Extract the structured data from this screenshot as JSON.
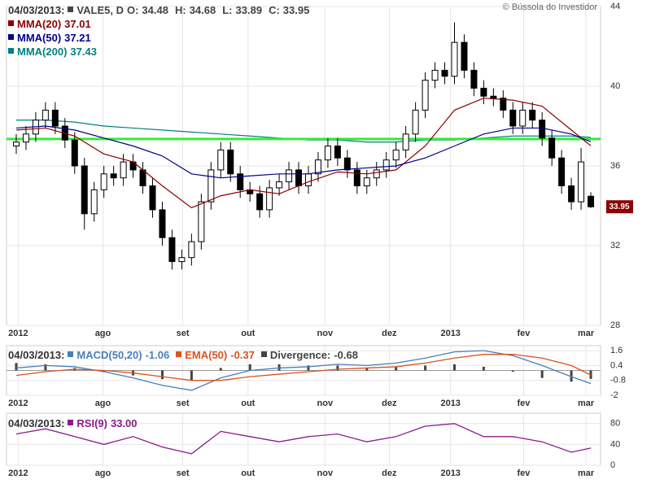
{
  "header": {
    "watermark": "© Bússola do Investidor"
  },
  "chart_data": [
    {
      "type": "candlestick",
      "date": "04/03/2013:",
      "name": "VALE5, D",
      "color": "#444444",
      "ohlc_labels": [
        "O:",
        "H:",
        "L:",
        "C:"
      ],
      "open": [
        37.0,
        37.2,
        37.6,
        38.3,
        38.8,
        38.0,
        37.3,
        36.0,
        33.6,
        34.8,
        35.6,
        35.4,
        36.2,
        35.8,
        35.0,
        33.8,
        32.4,
        31.2,
        31.4,
        32.2,
        34.2,
        35.8,
        36.8,
        35.6,
        34.8,
        34.6,
        33.8,
        34.9,
        35.2,
        35.8,
        35.0,
        35.6,
        36.3,
        37.0,
        36.4,
        35.8,
        35.0,
        35.4,
        35.8,
        36.3,
        36.8,
        37.6,
        38.8,
        40.3,
        40.8,
        40.5,
        42.2,
        40.8,
        39.9,
        39.5,
        39.4,
        38.8,
        38.0,
        38.8,
        38.3,
        37.4,
        36.4,
        35.0,
        34.2,
        34.48
      ],
      "high": [
        37.6,
        38.0,
        38.7,
        39.2,
        39.2,
        38.4,
        37.7,
        36.4,
        35.2,
        36.0,
        36.0,
        36.6,
        36.6,
        36.2,
        35.4,
        34.2,
        32.8,
        31.8,
        32.6,
        34.6,
        36.2,
        37.2,
        37.2,
        36.0,
        35.2,
        35.0,
        35.3,
        35.6,
        36.2,
        36.2,
        36.0,
        36.7,
        37.4,
        37.4,
        36.8,
        36.2,
        35.8,
        36.2,
        36.7,
        37.2,
        38.0,
        39.2,
        40.7,
        41.2,
        41.2,
        43.2,
        42.6,
        41.2,
        40.3,
        39.9,
        39.8,
        39.2,
        39.2,
        39.2,
        38.7,
        37.8,
        36.8,
        35.4,
        36.9,
        34.68
      ],
      "low": [
        36.6,
        36.8,
        37.2,
        37.9,
        37.6,
        36.9,
        35.6,
        32.8,
        33.2,
        34.4,
        35.0,
        35.0,
        35.4,
        34.6,
        33.4,
        32.0,
        30.8,
        30.8,
        31.0,
        31.8,
        33.8,
        35.4,
        35.2,
        34.4,
        34.2,
        33.4,
        33.4,
        34.5,
        34.8,
        34.6,
        34.6,
        35.2,
        35.9,
        36.0,
        35.4,
        34.6,
        34.6,
        35.0,
        35.4,
        35.9,
        36.4,
        37.2,
        38.4,
        39.9,
        40.1,
        40.1,
        40.4,
        39.5,
        39.1,
        39.0,
        38.4,
        37.6,
        37.6,
        37.9,
        37.0,
        36.0,
        34.6,
        33.8,
        33.8,
        33.89
      ],
      "close": [
        37.2,
        37.6,
        38.3,
        38.8,
        38.0,
        37.3,
        36.0,
        33.6,
        34.8,
        35.6,
        35.4,
        36.2,
        35.8,
        35.0,
        33.8,
        32.4,
        31.2,
        31.4,
        32.2,
        34.2,
        35.8,
        36.8,
        35.6,
        34.8,
        34.6,
        33.8,
        34.9,
        35.2,
        35.8,
        35.0,
        35.6,
        36.3,
        37.0,
        36.4,
        35.8,
        35.0,
        35.4,
        35.8,
        36.3,
        36.8,
        37.6,
        38.8,
        40.3,
        40.8,
        40.5,
        42.2,
        40.8,
        39.9,
        39.5,
        39.4,
        38.8,
        38.0,
        38.8,
        38.3,
        37.4,
        36.4,
        35.0,
        34.2,
        36.2,
        33.95
      ],
      "color_up": "#ffffff",
      "color_down": "#000000",
      "last_label_color": "#8b0000",
      "xlim": [
        -1,
        60
      ],
      "xticks": [
        {
          "value": 0.2,
          "label": "2012"
        },
        {
          "value": 8.9,
          "label": "ago"
        },
        {
          "value": 17.1,
          "label": "set"
        },
        {
          "value": 23.8,
          "label": "out"
        },
        {
          "value": 31.7,
          "label": "nov"
        },
        {
          "value": 38.3,
          "label": "dez"
        },
        {
          "value": 44.6,
          "label": "2013"
        },
        {
          "value": 52.1,
          "label": "fev"
        },
        {
          "value": 58.5,
          "label": "mar"
        }
      ],
      "ylim": [
        28,
        44
      ],
      "yticks": [
        28,
        32,
        36,
        40,
        44
      ],
      "grid": true,
      "ma_x": [
        0,
        3,
        6,
        9,
        12,
        15,
        18,
        21,
        24,
        27,
        30,
        33,
        36,
        39,
        42,
        45,
        48,
        51,
        54,
        57,
        59
      ],
      "overlays": [
        {
          "name": "MMA(20)",
          "color": "#8b0000",
          "values": [
            37.8,
            37.9,
            37.5,
            36.6,
            36.2,
            35.0,
            33.9,
            34.5,
            34.8,
            34.6,
            35.2,
            35.7,
            35.6,
            35.8,
            37.0,
            38.8,
            39.4,
            39.3,
            39.0,
            37.8,
            37.01
          ]
        },
        {
          "name": "MMA(50)",
          "color": "#00008b",
          "values": [
            37.9,
            38.0,
            37.8,
            37.4,
            37.0,
            36.5,
            35.6,
            35.4,
            35.5,
            35.6,
            35.6,
            35.8,
            35.9,
            36.0,
            36.4,
            37.0,
            37.6,
            37.9,
            37.9,
            37.6,
            37.21
          ]
        },
        {
          "name": "MMA(200)",
          "color": "#008080",
          "values": [
            38.3,
            38.3,
            38.2,
            38.0,
            37.9,
            37.8,
            37.7,
            37.6,
            37.5,
            37.4,
            37.3,
            37.3,
            37.2,
            37.2,
            37.3,
            37.3,
            37.4,
            37.5,
            37.5,
            37.5,
            37.43
          ]
        }
      ],
      "level_line": {
        "value": 37.35,
        "color": "#33ee33"
      }
    },
    {
      "type": "macd",
      "date": "04/03/2013:",
      "x": [
        0,
        3,
        6,
        9,
        12,
        15,
        18,
        21,
        24,
        27,
        30,
        33,
        36,
        39,
        42,
        45,
        48,
        51,
        54,
        57,
        59
      ],
      "ylim": [
        -2,
        2
      ],
      "yticks": [
        1.6,
        0.4,
        -0.8,
        -2
      ],
      "grid": true,
      "series": [
        {
          "name": "MACD(50,20)",
          "color": "#4a7ebb",
          "kind": "line",
          "values": [
            0.2,
            0.4,
            0.3,
            -0.1,
            -0.6,
            -1.2,
            -1.6,
            -0.6,
            0.0,
            0.2,
            0.3,
            0.5,
            0.4,
            0.6,
            1.0,
            1.5,
            1.6,
            1.2,
            0.4,
            -0.5,
            -1.06
          ]
        },
        {
          "name": "EMA(50)",
          "color": "#d9541e",
          "kind": "line",
          "values": [
            -0.4,
            -0.1,
            0.1,
            0.0,
            -0.2,
            -0.5,
            -0.8,
            -0.8,
            -0.5,
            -0.3,
            -0.1,
            0.1,
            0.2,
            0.3,
            0.6,
            1.0,
            1.3,
            1.3,
            1.0,
            0.4,
            -0.37
          ]
        },
        {
          "name": "Divergence:",
          "color": "#444444",
          "kind": "bar",
          "values": [
            0.6,
            0.5,
            0.2,
            -0.1,
            -0.4,
            -0.7,
            -0.8,
            0.2,
            0.5,
            0.5,
            0.4,
            0.4,
            0.2,
            0.3,
            0.4,
            0.5,
            0.3,
            -0.1,
            -0.6,
            -0.9,
            -0.68
          ]
        }
      ]
    },
    {
      "type": "rsi",
      "date": "04/03/2013:",
      "x": [
        0,
        3,
        6,
        9,
        12,
        15,
        18,
        21,
        24,
        27,
        30,
        33,
        36,
        39,
        42,
        45,
        48,
        51,
        54,
        57,
        59
      ],
      "ylim": [
        0,
        100
      ],
      "yticks": [
        80,
        40,
        0
      ],
      "grid": true,
      "series": [
        {
          "name": "RSI(9)",
          "color": "#8b1a8b",
          "kind": "line",
          "values": [
            60,
            70,
            55,
            40,
            55,
            35,
            22,
            65,
            55,
            45,
            55,
            60,
            45,
            55,
            75,
            80,
            55,
            55,
            45,
            25,
            33
          ],
          "legend_value_label": "33.00"
        }
      ]
    }
  ]
}
